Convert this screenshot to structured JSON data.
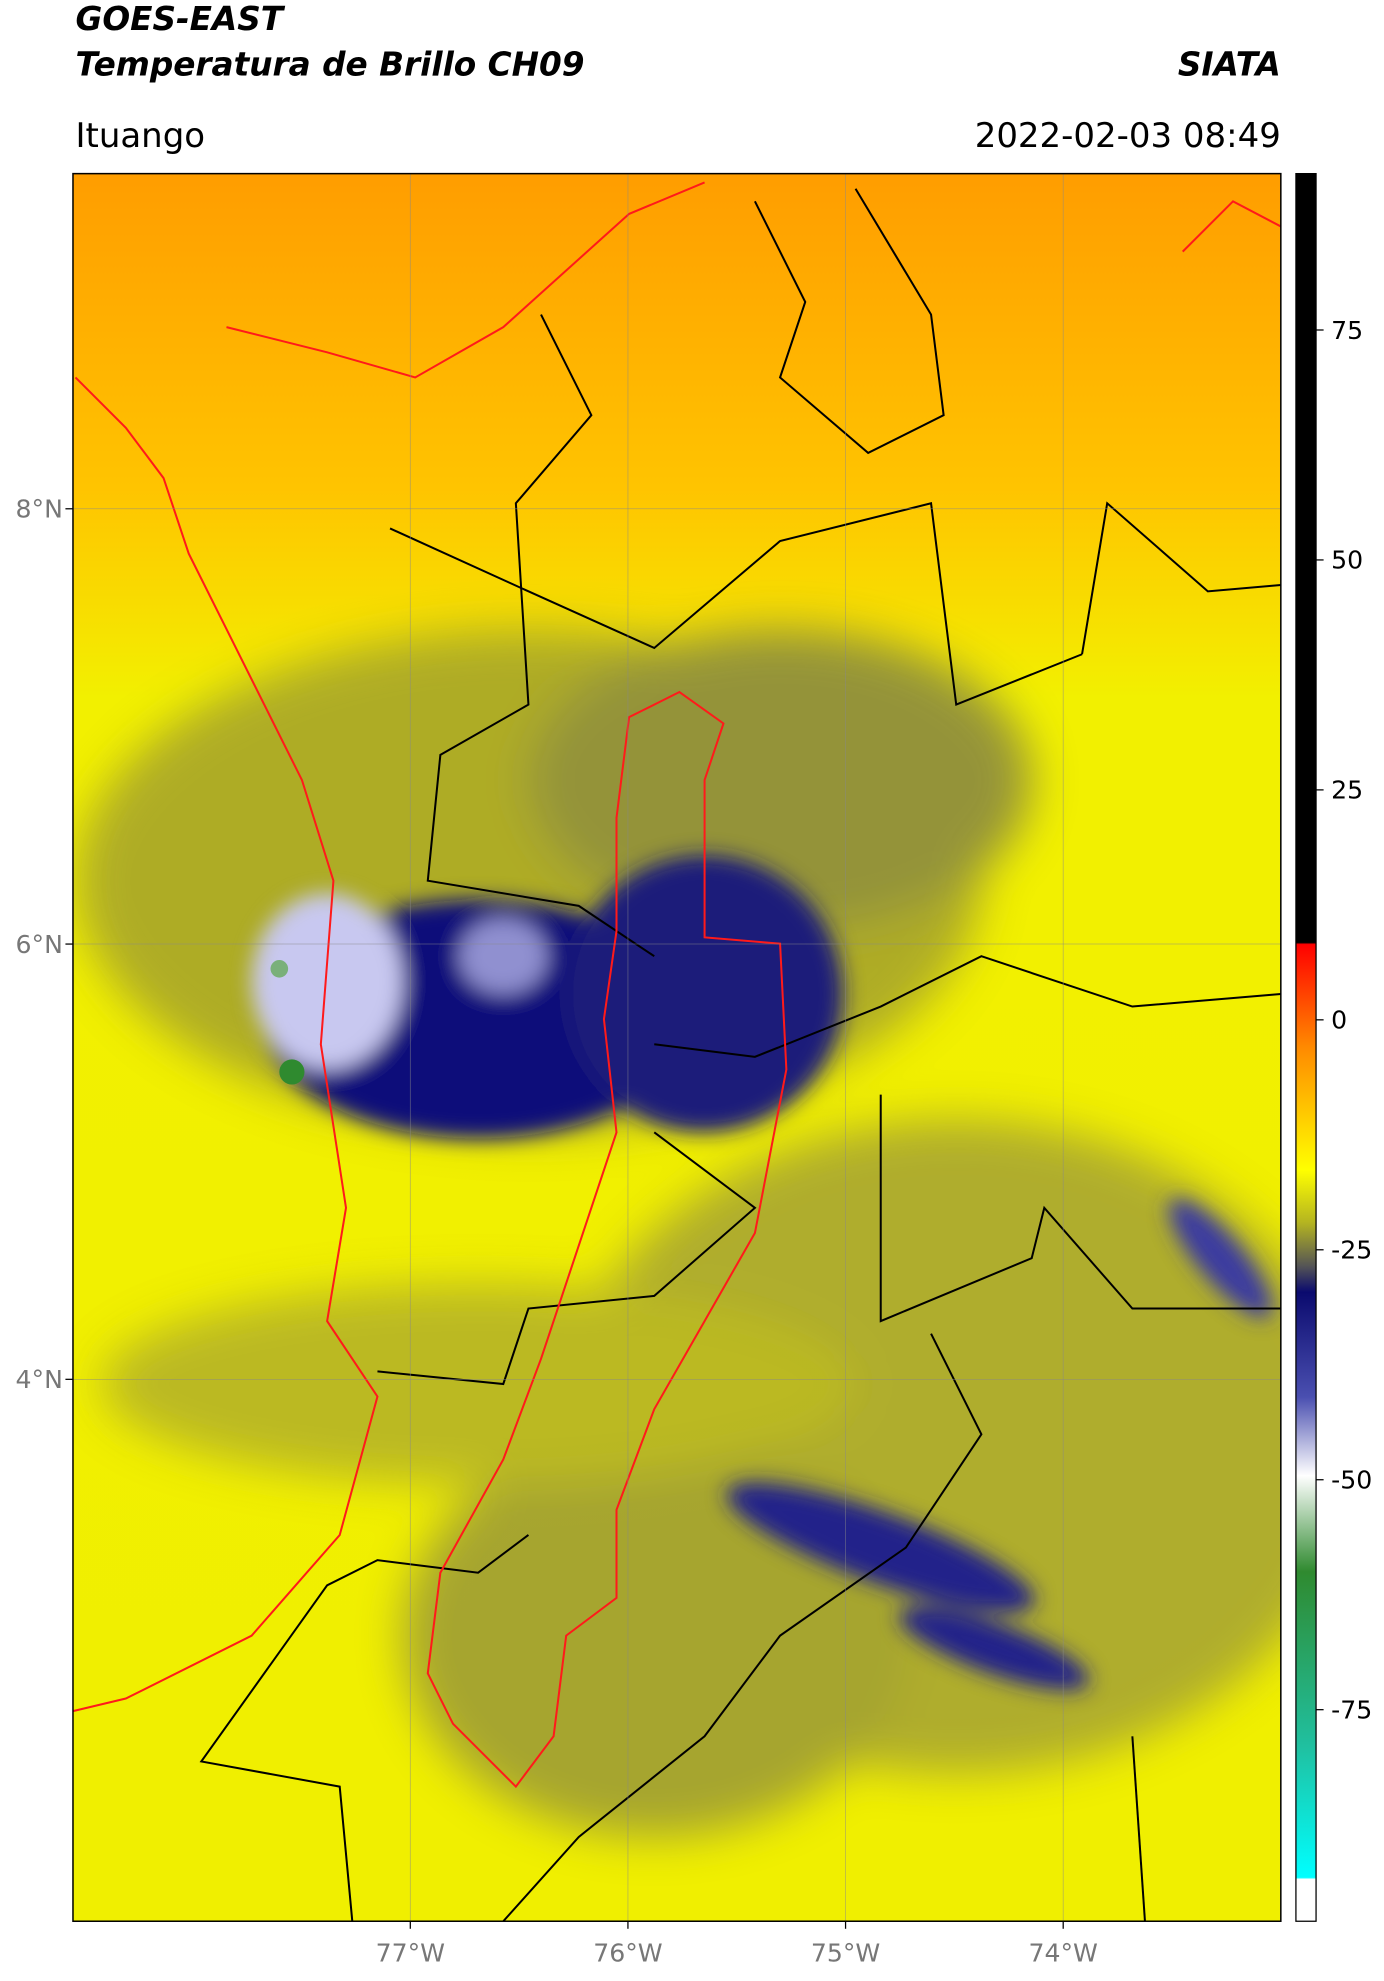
{
  "header": {
    "title_line1": "GOES-EAST",
    "title_line2": "Temperatura de Brillo CH09",
    "agency": "SIATA",
    "location": "Ituango",
    "datetime": "2022-02-03 08:49"
  },
  "map": {
    "latlim": [
      1.51,
      9.54
    ],
    "lonlim": [
      -78.55,
      -73.0
    ],
    "lat_ticks": [
      {
        "value": 8,
        "label": "8°N"
      },
      {
        "value": 6,
        "label": "6°N"
      },
      {
        "value": 4,
        "label": "4°N"
      }
    ],
    "lon_ticks": [
      {
        "value": -77,
        "label": "77°W"
      },
      {
        "value": -76,
        "label": "76°W"
      },
      {
        "value": -75,
        "label": "75°W"
      },
      {
        "value": -74,
        "label": "74°W"
      }
    ]
  },
  "colorbar": {
    "lim": [
      -98,
      92
    ],
    "ticks": [
      75,
      50,
      25,
      0,
      -25,
      -50,
      -75
    ]
  }
}
